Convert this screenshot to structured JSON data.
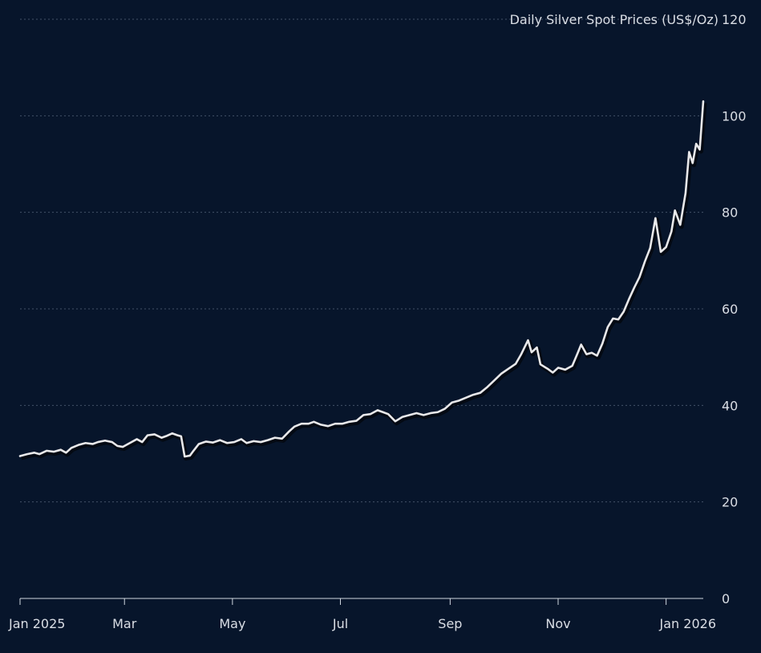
{
  "chart_data": {
    "type": "line",
    "title": "",
    "ylabel": "Daily Silver Spot Prices (US$/Oz)",
    "xlabel": "",
    "ylim": [
      0,
      120
    ],
    "yticks": [
      "0",
      "20",
      "40",
      "60",
      "80",
      "100",
      "120"
    ],
    "xticks": [
      {
        "date": "2025-01-01",
        "label": "Jan 2025"
      },
      {
        "date": "2025-03-01",
        "label": "Mar"
      },
      {
        "date": "2025-05-01",
        "label": "May"
      },
      {
        "date": "2025-07-01",
        "label": "Jul"
      },
      {
        "date": "2025-09-01",
        "label": "Sep"
      },
      {
        "date": "2025-11-01",
        "label": "Nov"
      },
      {
        "date": "2026-01-01",
        "label": "Jan 2026"
      }
    ],
    "grid": true,
    "legend": "none",
    "line_color": "#e8e8ea",
    "background": "#07152b",
    "series": [
      {
        "points": [
          [
            "2025-01-01",
            29.5
          ],
          [
            "2025-01-05",
            29.9
          ],
          [
            "2025-01-09",
            30.2
          ],
          [
            "2025-01-12",
            29.9
          ],
          [
            "2025-01-16",
            30.6
          ],
          [
            "2025-01-20",
            30.4
          ],
          [
            "2025-01-24",
            30.8
          ],
          [
            "2025-01-27",
            30.2
          ],
          [
            "2025-01-30",
            31.2
          ],
          [
            "2025-02-03",
            31.8
          ],
          [
            "2025-02-07",
            32.2
          ],
          [
            "2025-02-11",
            32.0
          ],
          [
            "2025-02-14",
            32.4
          ],
          [
            "2025-02-18",
            32.7
          ],
          [
            "2025-02-22",
            32.4
          ],
          [
            "2025-02-25",
            31.6
          ],
          [
            "2025-02-28",
            31.4
          ],
          [
            "2025-03-04",
            32.2
          ],
          [
            "2025-03-08",
            33.0
          ],
          [
            "2025-03-11",
            32.4
          ],
          [
            "2025-03-14",
            33.8
          ],
          [
            "2025-03-18",
            34.0
          ],
          [
            "2025-03-22",
            33.3
          ],
          [
            "2025-03-25",
            33.7
          ],
          [
            "2025-03-28",
            34.2
          ],
          [
            "2025-03-31",
            33.8
          ],
          [
            "2025-04-02",
            33.6
          ],
          [
            "2025-04-04",
            29.4
          ],
          [
            "2025-04-07",
            29.6
          ],
          [
            "2025-04-09",
            30.6
          ],
          [
            "2025-04-12",
            32.0
          ],
          [
            "2025-04-16",
            32.5
          ],
          [
            "2025-04-20",
            32.3
          ],
          [
            "2025-04-24",
            32.8
          ],
          [
            "2025-04-28",
            32.2
          ],
          [
            "2025-05-02",
            32.4
          ],
          [
            "2025-05-06",
            33.0
          ],
          [
            "2025-05-09",
            32.2
          ],
          [
            "2025-05-13",
            32.6
          ],
          [
            "2025-05-17",
            32.4
          ],
          [
            "2025-05-21",
            32.8
          ],
          [
            "2025-05-25",
            33.3
          ],
          [
            "2025-05-29",
            33.1
          ],
          [
            "2025-06-02",
            34.6
          ],
          [
            "2025-06-05",
            35.6
          ],
          [
            "2025-06-09",
            36.2
          ],
          [
            "2025-06-13",
            36.2
          ],
          [
            "2025-06-16",
            36.6
          ],
          [
            "2025-06-20",
            36.0
          ],
          [
            "2025-06-24",
            35.7
          ],
          [
            "2025-06-28",
            36.2
          ],
          [
            "2025-07-02",
            36.2
          ],
          [
            "2025-07-06",
            36.6
          ],
          [
            "2025-07-10",
            36.8
          ],
          [
            "2025-07-14",
            38.0
          ],
          [
            "2025-07-18",
            38.2
          ],
          [
            "2025-07-22",
            39.0
          ],
          [
            "2025-07-25",
            38.6
          ],
          [
            "2025-07-28",
            38.2
          ],
          [
            "2025-08-01",
            36.7
          ],
          [
            "2025-08-05",
            37.6
          ],
          [
            "2025-08-09",
            38.0
          ],
          [
            "2025-08-13",
            38.4
          ],
          [
            "2025-08-17",
            38.0
          ],
          [
            "2025-08-21",
            38.4
          ],
          [
            "2025-08-25",
            38.6
          ],
          [
            "2025-08-29",
            39.3
          ],
          [
            "2025-09-02",
            40.6
          ],
          [
            "2025-09-06",
            41.0
          ],
          [
            "2025-09-10",
            41.6
          ],
          [
            "2025-09-14",
            42.2
          ],
          [
            "2025-09-18",
            42.6
          ],
          [
            "2025-09-22",
            43.8
          ],
          [
            "2025-09-26",
            45.2
          ],
          [
            "2025-09-30",
            46.6
          ],
          [
            "2025-10-04",
            47.6
          ],
          [
            "2025-10-08",
            48.6
          ],
          [
            "2025-10-11",
            50.5
          ],
          [
            "2025-10-15",
            53.5
          ],
          [
            "2025-10-17",
            51.0
          ],
          [
            "2025-10-20",
            52.0
          ],
          [
            "2025-10-22",
            48.5
          ],
          [
            "2025-10-26",
            47.6
          ],
          [
            "2025-10-29",
            46.8
          ],
          [
            "2025-11-01",
            47.8
          ],
          [
            "2025-11-05",
            47.4
          ],
          [
            "2025-11-09",
            48.2
          ],
          [
            "2025-11-12",
            50.8
          ],
          [
            "2025-11-14",
            52.6
          ],
          [
            "2025-11-17",
            50.6
          ],
          [
            "2025-11-20",
            50.9
          ],
          [
            "2025-11-23",
            50.3
          ],
          [
            "2025-11-26",
            52.8
          ],
          [
            "2025-11-29",
            56.2
          ],
          [
            "2025-12-02",
            58.0
          ],
          [
            "2025-12-05",
            57.8
          ],
          [
            "2025-12-08",
            59.4
          ],
          [
            "2025-12-11",
            62.0
          ],
          [
            "2025-12-14",
            64.4
          ],
          [
            "2025-12-17",
            66.6
          ],
          [
            "2025-12-20",
            69.8
          ],
          [
            "2025-12-23",
            72.6
          ],
          [
            "2025-12-26",
            78.8
          ],
          [
            "2025-12-29",
            71.8
          ],
          [
            "2026-01-01",
            72.8
          ],
          [
            "2026-01-04",
            76.0
          ],
          [
            "2026-01-06",
            80.4
          ],
          [
            "2026-01-09",
            77.4
          ],
          [
            "2026-01-12",
            84.0
          ],
          [
            "2026-01-14",
            92.5
          ],
          [
            "2026-01-16",
            90.2
          ],
          [
            "2026-01-18",
            94.2
          ],
          [
            "2026-01-20",
            93.0
          ],
          [
            "2026-01-22",
            103.0
          ]
        ]
      }
    ]
  }
}
